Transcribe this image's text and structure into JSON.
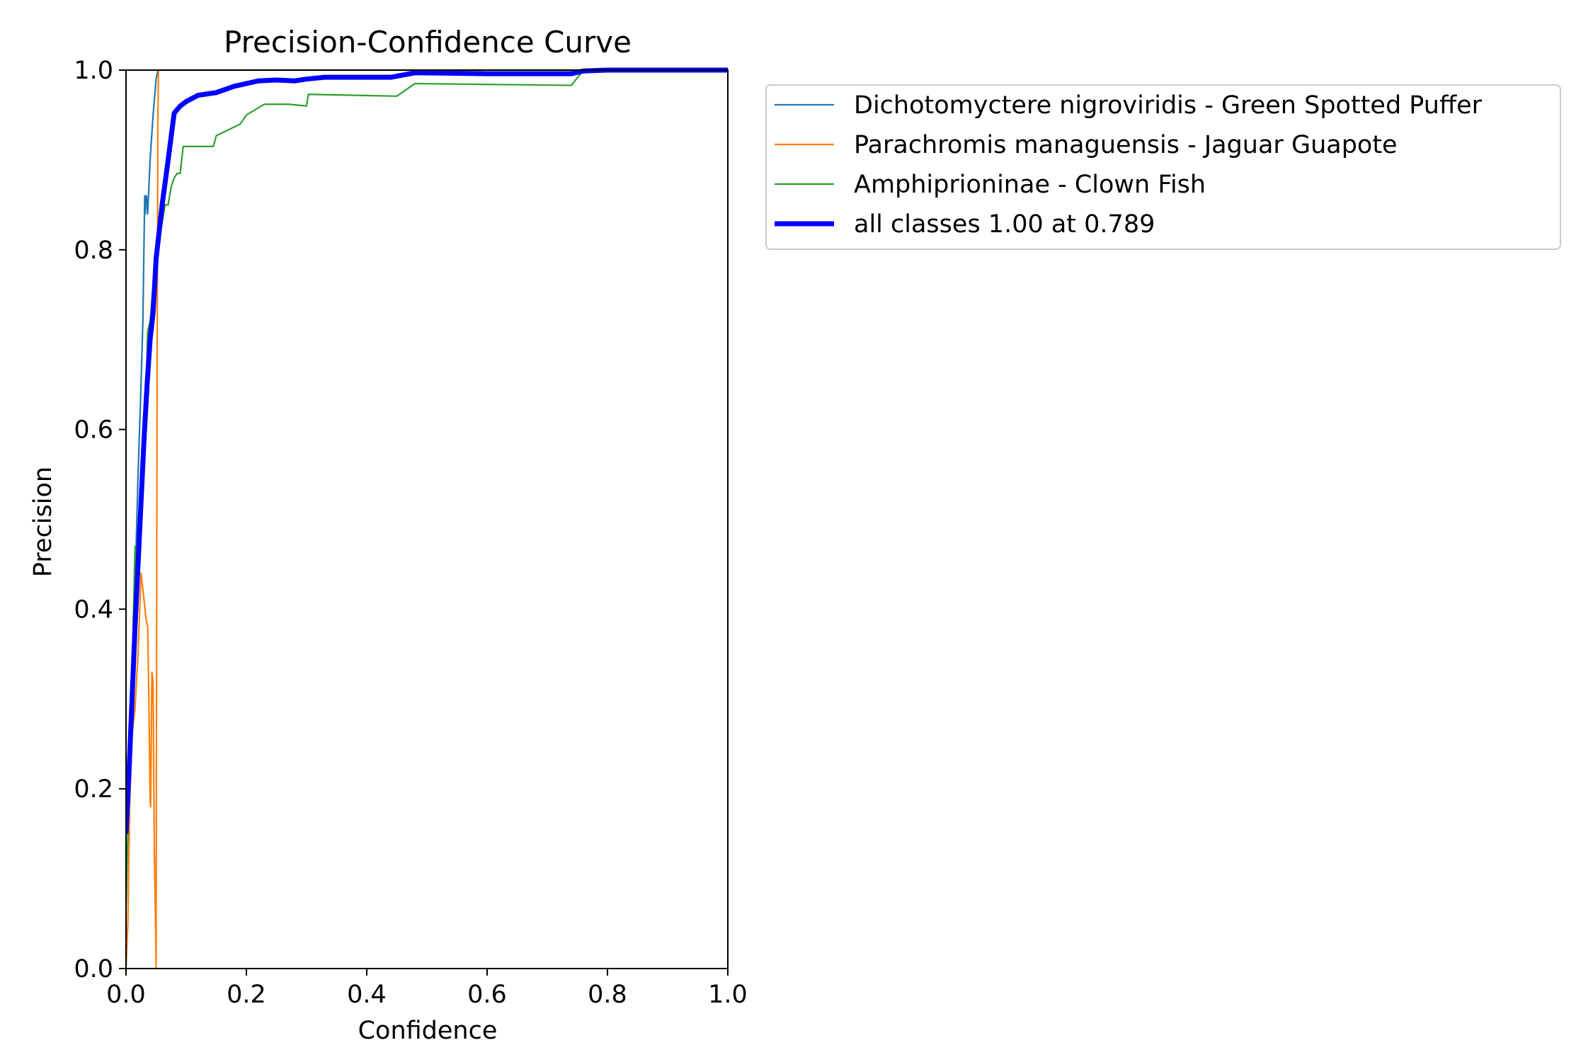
{
  "chart_data": {
    "type": "line",
    "title": "Precision-Confidence Curve",
    "xlabel": "Confidence",
    "ylabel": "Precision",
    "xlim": [
      0.0,
      1.0
    ],
    "ylim": [
      0.0,
      1.0
    ],
    "xticks": [
      "0.0",
      "0.2",
      "0.4",
      "0.6",
      "0.8",
      "1.0"
    ],
    "yticks": [
      "0.0",
      "0.2",
      "0.4",
      "0.6",
      "0.8",
      "1.0"
    ],
    "grid": false,
    "legend_position": "outside-top-right",
    "series": [
      {
        "name": "Dichotomyctere nigroviridis - Green Spotted Puffer",
        "color": "#1f77b4",
        "line_width": "thin",
        "x": [
          0.0,
          0.004,
          0.008,
          0.012,
          0.016,
          0.02,
          0.024,
          0.028,
          0.031,
          0.032,
          0.033,
          0.034,
          0.036,
          0.04,
          0.045,
          0.05,
          0.053,
          0.06,
          0.08,
          0.1,
          0.2,
          0.4,
          0.6,
          0.8,
          1.0
        ],
        "y": [
          0.15,
          0.2,
          0.26,
          0.34,
          0.45,
          0.55,
          0.63,
          0.72,
          0.86,
          0.84,
          0.86,
          0.86,
          0.84,
          0.9,
          0.95,
          0.99,
          1.0,
          1.0,
          1.0,
          1.0,
          1.0,
          1.0,
          1.0,
          1.0,
          1.0
        ]
      },
      {
        "name": "Parachromis managuensis - Jaguar Guapote",
        "color": "#ff7f0e",
        "line_width": "thin",
        "x": [
          0.0,
          0.003,
          0.006,
          0.01,
          0.015,
          0.02,
          0.025,
          0.03,
          0.033,
          0.036,
          0.038,
          0.04,
          0.041,
          0.043,
          0.045,
          0.047,
          0.049,
          0.05,
          0.051,
          0.052,
          0.053,
          0.054,
          0.06,
          0.1,
          0.5,
          1.0
        ],
        "y": [
          0.0,
          0.05,
          0.18,
          0.26,
          0.29,
          0.35,
          0.44,
          0.41,
          0.39,
          0.38,
          0.3,
          0.19,
          0.18,
          0.33,
          0.32,
          0.13,
          0.05,
          0.0,
          0.45,
          0.75,
          0.95,
          1.0,
          1.0,
          1.0,
          1.0,
          1.0
        ]
      },
      {
        "name": "Amphiprioninae - Clown Fish",
        "color": "#2ca02c",
        "line_width": "thin",
        "x": [
          0.0,
          0.003,
          0.006,
          0.01,
          0.015,
          0.02,
          0.025,
          0.03,
          0.033,
          0.036,
          0.04,
          0.045,
          0.05,
          0.055,
          0.06,
          0.065,
          0.07,
          0.075,
          0.08,
          0.085,
          0.09,
          0.095,
          0.1,
          0.12,
          0.145,
          0.15,
          0.19,
          0.2,
          0.23,
          0.27,
          0.3,
          0.303,
          0.45,
          0.48,
          0.74,
          0.76,
          0.8,
          1.0
        ],
        "y": [
          0.07,
          0.15,
          0.26,
          0.33,
          0.47,
          0.44,
          0.55,
          0.62,
          0.63,
          0.71,
          0.72,
          0.76,
          0.79,
          0.81,
          0.83,
          0.85,
          0.85,
          0.87,
          0.88,
          0.885,
          0.885,
          0.915,
          0.915,
          0.915,
          0.915,
          0.927,
          0.94,
          0.95,
          0.962,
          0.962,
          0.96,
          0.973,
          0.971,
          0.985,
          0.983,
          1.0,
          1.0,
          1.0
        ]
      },
      {
        "name": "all classes 1.00 at 0.789",
        "color": "#0000ff",
        "line_width": "thick",
        "x": [
          0.0,
          0.005,
          0.01,
          0.015,
          0.02,
          0.025,
          0.03,
          0.035,
          0.04,
          0.045,
          0.05,
          0.055,
          0.06,
          0.07,
          0.08,
          0.09,
          0.1,
          0.12,
          0.15,
          0.18,
          0.22,
          0.25,
          0.28,
          0.3,
          0.33,
          0.36,
          0.44,
          0.48,
          0.6,
          0.74,
          0.76,
          0.8,
          1.0
        ],
        "y": [
          0.15,
          0.22,
          0.3,
          0.38,
          0.45,
          0.52,
          0.59,
          0.65,
          0.7,
          0.73,
          0.79,
          0.82,
          0.85,
          0.9,
          0.952,
          0.96,
          0.965,
          0.972,
          0.975,
          0.982,
          0.988,
          0.989,
          0.988,
          0.99,
          0.992,
          0.992,
          0.992,
          0.997,
          0.996,
          0.996,
          0.999,
          1.0,
          1.0
        ]
      }
    ]
  }
}
